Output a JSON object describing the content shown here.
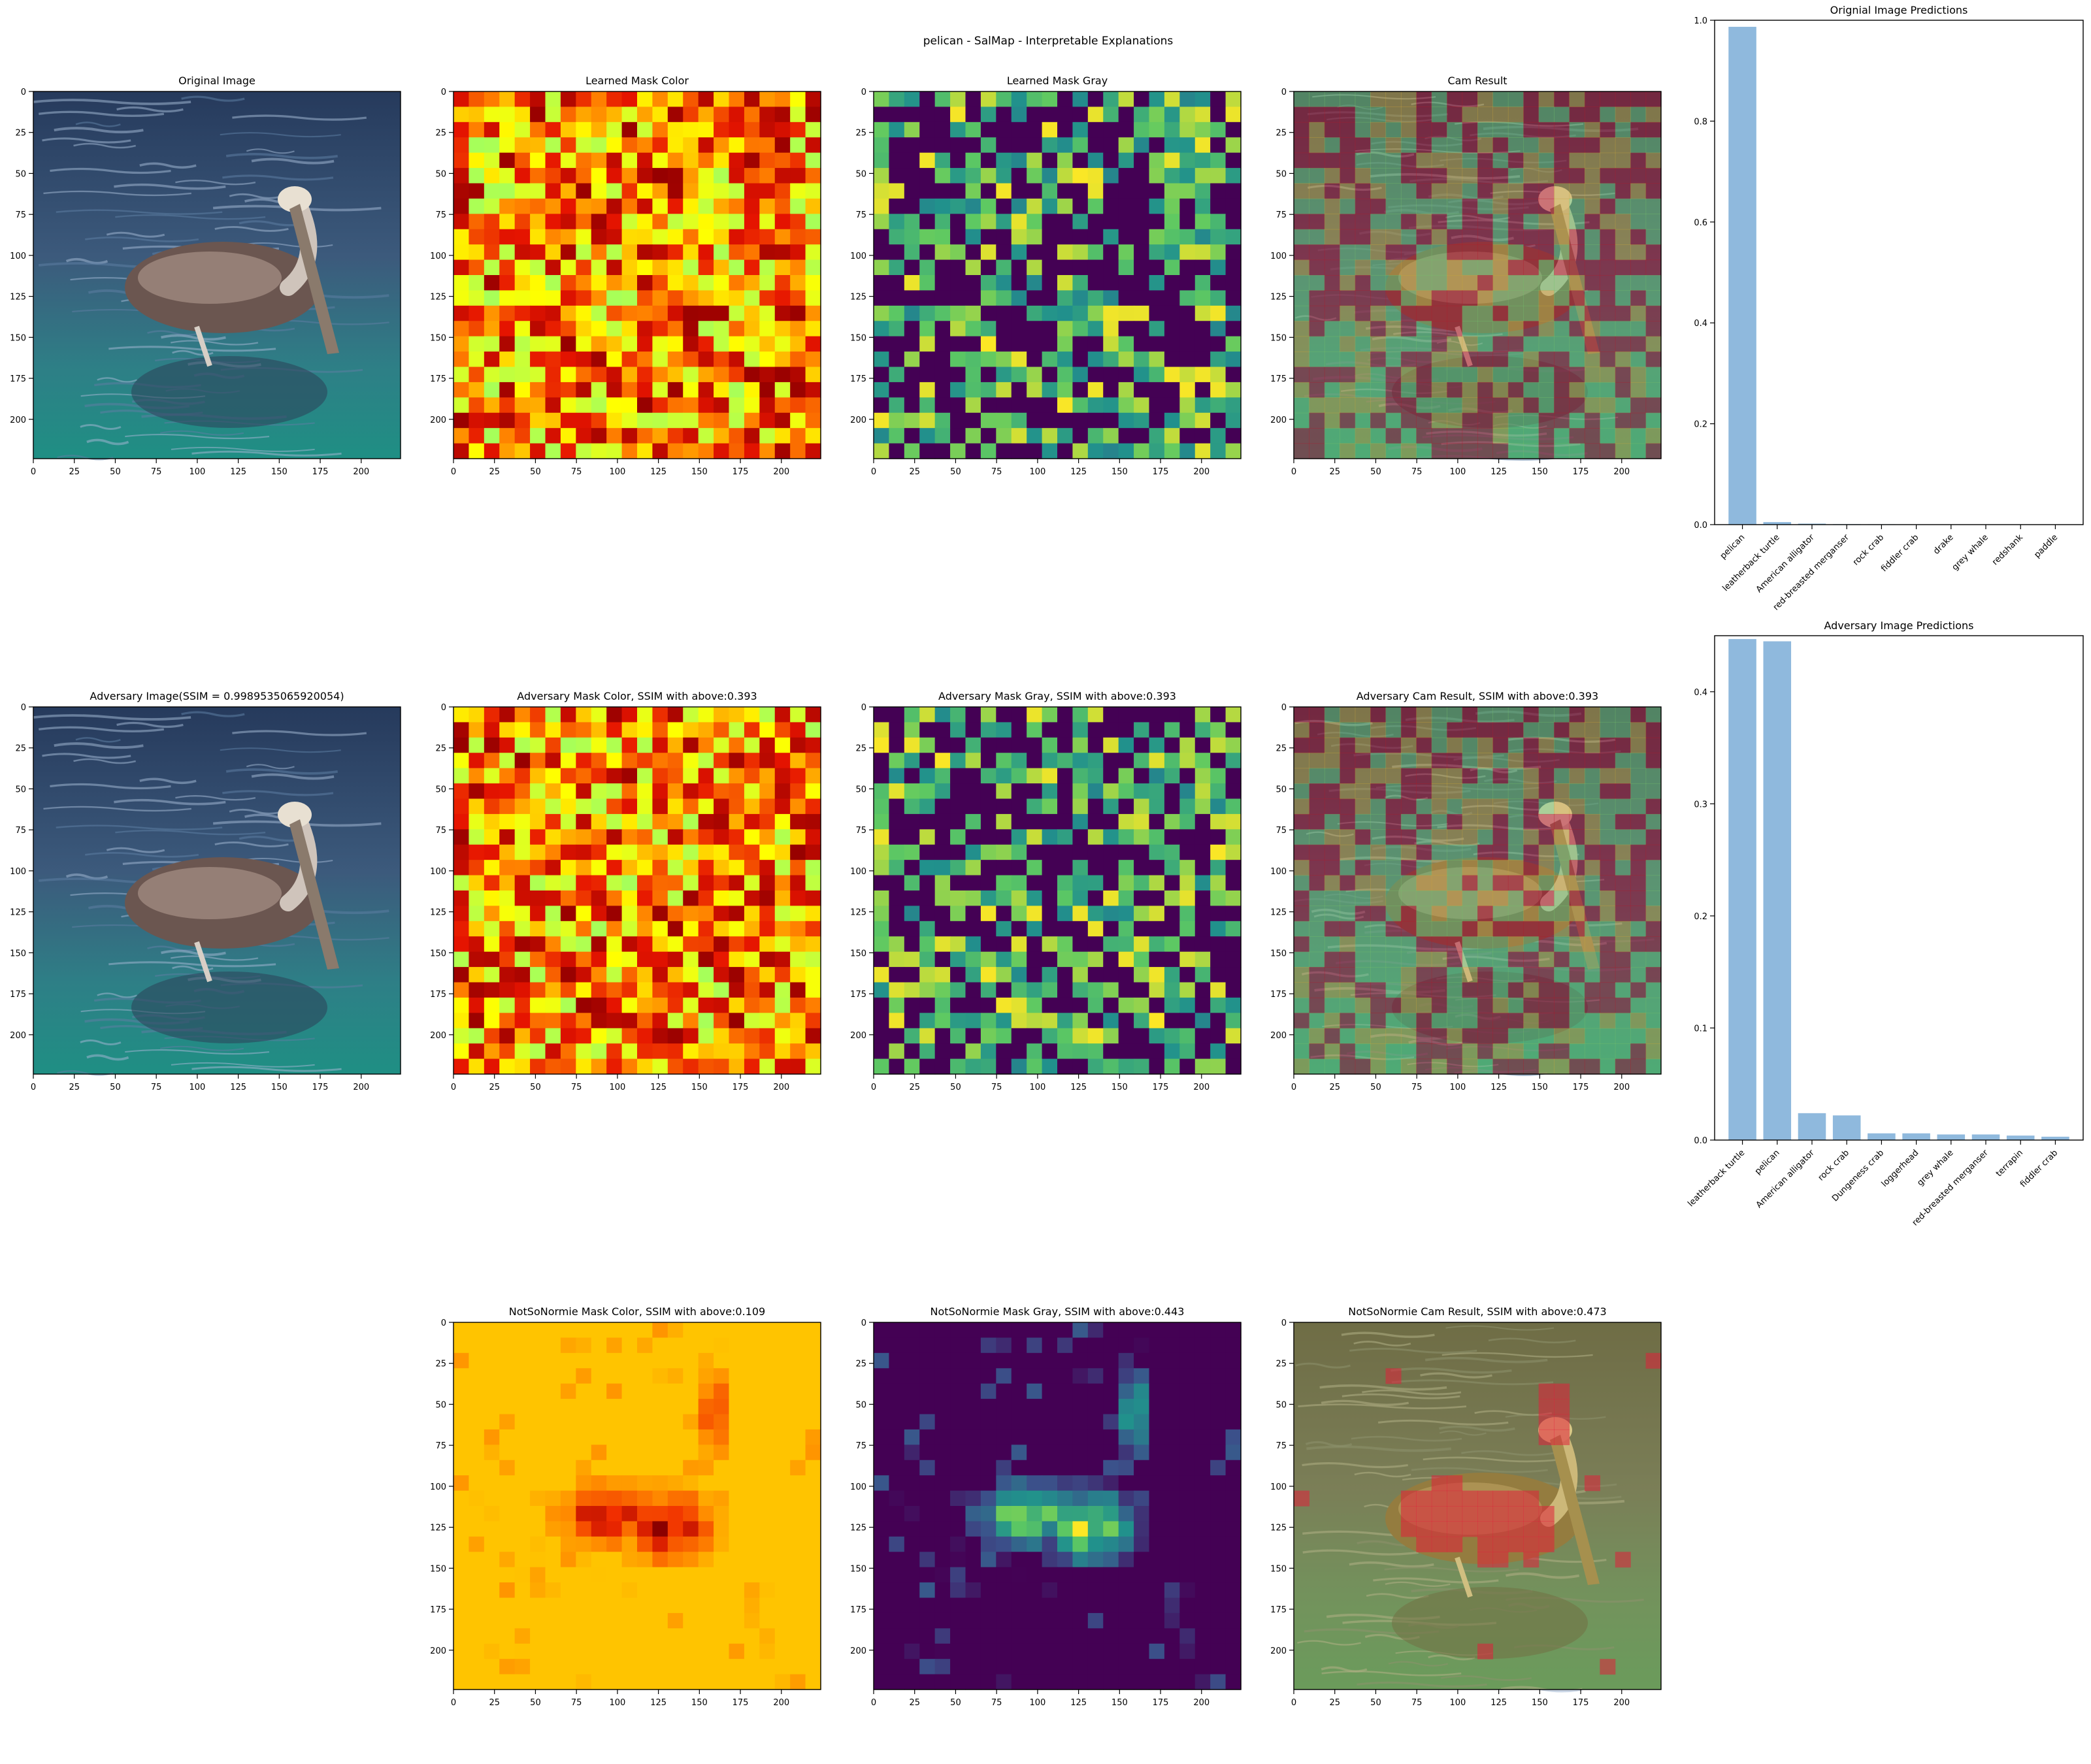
{
  "suptitle": "pelican - SalMap - Interpretable Explanations",
  "panels": {
    "original_image": {
      "title": "Original Image"
    },
    "learned_mask_color": {
      "title": "Learned Mask Color"
    },
    "learned_mask_gray": {
      "title": "Learned Mask Gray"
    },
    "cam_result": {
      "title": "Cam Result"
    },
    "adversary_image": {
      "title": "Adversary Image(SSIM = 0.9989535065920054)"
    },
    "adversary_mask_color": {
      "title": "Adversary Mask Color, SSIM with above:0.393"
    },
    "adversary_mask_gray": {
      "title": "Adversary Mask Gray, SSIM with above:0.393"
    },
    "adversary_cam_result": {
      "title": "Adversary Cam Result, SSIM with above:0.393"
    },
    "notsonormie_mask_color": {
      "title": "NotSoNormie Mask Color, SSIM with above:0.109"
    },
    "notsonormie_mask_gray": {
      "title": "NotSoNormie Mask Gray, SSIM with above:0.443"
    },
    "notsonormie_cam_result": {
      "title": "NotSoNormie Cam Result, SSIM with above:0.473"
    }
  },
  "image_axis": {
    "xticks": [
      "0",
      "25",
      "50",
      "75",
      "100",
      "125",
      "150",
      "175",
      "200"
    ],
    "yticks": [
      "0",
      "25",
      "50",
      "75",
      "100",
      "125",
      "150",
      "175",
      "200"
    ],
    "xlim": [
      0,
      224
    ],
    "ylim": [
      224,
      0
    ]
  },
  "colors": {
    "bar": "#8fb9dd",
    "water_dark": "#1f3557",
    "water_teal": "#2f8f8a",
    "pelican_body": "#6b5650",
    "hot_low": "#ffc400",
    "hot_high": "#8b0000",
    "viridis_low": "#440154",
    "viridis_high": "#fde725"
  },
  "chart_data": [
    {
      "type": "bar",
      "title": "Orignial Image Predictions",
      "categories": [
        "pelican",
        "leatherback turtle",
        "American alligator",
        "red-breasted merganser",
        "rock crab",
        "fiddler crab",
        "drake",
        "grey whale",
        "redshank",
        "paddle"
      ],
      "values": [
        0.987,
        0.005,
        0.002,
        0.001,
        0.0008,
        0.0006,
        0.0005,
        0.0004,
        0.0003,
        0.0002
      ],
      "ylim": [
        0,
        1.0
      ],
      "yticks": [
        "0.0",
        "0.2",
        "0.4",
        "0.6",
        "0.8",
        "1.0"
      ],
      "xlabel": "",
      "ylabel": ""
    },
    {
      "type": "bar",
      "title": "Adversary Image Predictions",
      "categories": [
        "leatherback turtle",
        "pelican",
        "American alligator",
        "rock crab",
        "Dungeness crab",
        "loggerhead",
        "grey whale",
        "red-breasted merganser",
        "terrapin",
        "fiddler crab"
      ],
      "values": [
        0.447,
        0.445,
        0.024,
        0.022,
        0.006,
        0.006,
        0.005,
        0.005,
        0.004,
        0.003
      ],
      "ylim": [
        0,
        0.45
      ],
      "yticks": [
        "0.0",
        "0.1",
        "0.2",
        "0.3",
        "0.4"
      ],
      "xlabel": "",
      "ylabel": ""
    }
  ]
}
